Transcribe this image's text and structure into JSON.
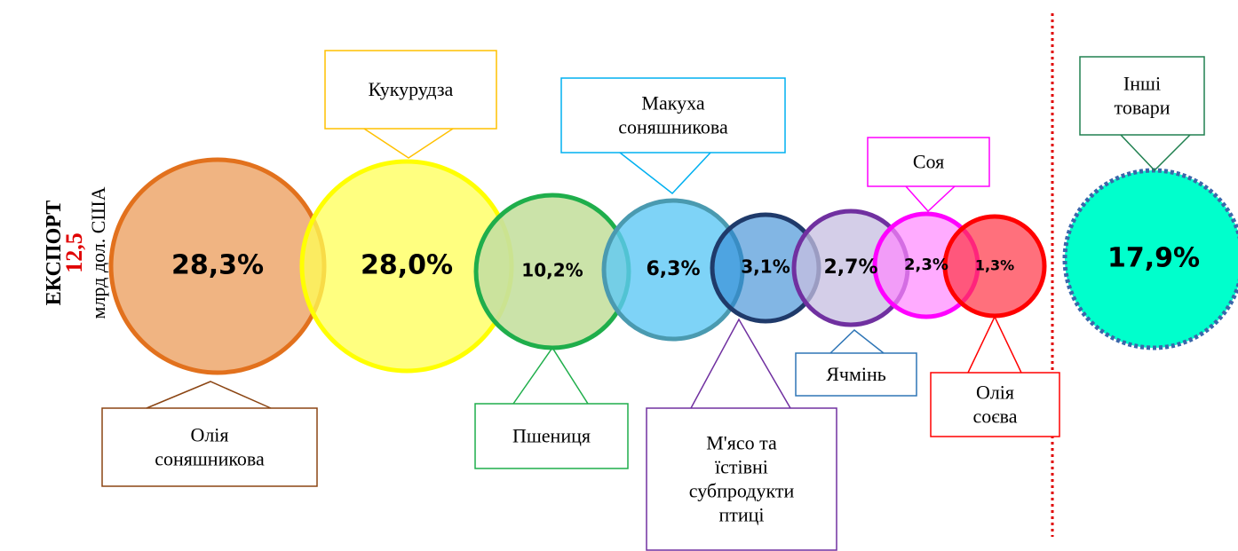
{
  "title": {
    "export": "ЕКСПОРТ",
    "amount": "12,5",
    "unit": "млрд дол. США"
  },
  "nodes": [
    {
      "label_lines": [
        "Олія",
        "соняшникова"
      ],
      "share": "28,3%"
    },
    {
      "label_lines": [
        "Кукурудза"
      ],
      "share": "28,0%"
    },
    {
      "label_lines": [
        "Пшениця"
      ],
      "share": "10,2%"
    },
    {
      "label_lines": [
        "Макуха",
        "соняшникова"
      ],
      "share": "6,3%"
    },
    {
      "label_lines": [
        "М'ясо та",
        "їстівні",
        "субпродукти",
        "птиці"
      ],
      "share": "3,1%"
    },
    {
      "label_lines": [
        "Ячмінь"
      ],
      "share": "2,7%"
    },
    {
      "label_lines": [
        "Соя"
      ],
      "share": "2,3%"
    },
    {
      "label_lines": [
        "Олія",
        "соєва"
      ],
      "share": "1,3%"
    },
    {
      "label_lines": [
        "Інші",
        "товари"
      ],
      "share": "17,9%"
    }
  ]
}
